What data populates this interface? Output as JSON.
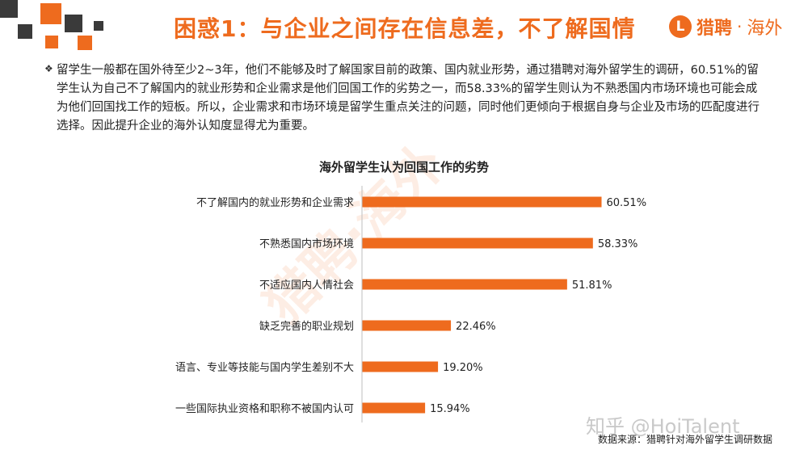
{
  "header": {
    "title": "困惑1：与企业之间存在信息差，不了解国情",
    "brand_mark": "L",
    "brand_name": "猎聘",
    "brand_sep": "·",
    "brand_sub": "海外"
  },
  "intro": {
    "bullet": "❖",
    "text": "留学生一般都在国外待至少2~3年，他们不能够及时了解国家目前的政策、国内就业形势，通过猎聘对海外留学生的调研，60.51%的留学生认为自己不了解国内的就业形势和企业需求是他们回国工作的劣势之一，而58.33%的留学生则认为不熟悉国内市场环境也可能会成为他们回国找工作的短板。所以，企业需求和市场环境是留学生重点关注的问题，同时他们更倾向于根据自身与企业及市场的匹配度进行选择。因此提升企业的海外认知度显得尤为重要。"
  },
  "watermark": "猎聘·海外",
  "chart_data": {
    "type": "bar",
    "orientation": "horizontal",
    "title": "海外留学生认为回国工作的劣势",
    "categories": [
      "不了解国内的就业形势和企业需求",
      "不熟悉国内市场环境",
      "不适应国内人情社会",
      "缺乏完善的职业规划",
      "语言、专业等技能与国内学生差别不大",
      "一些国际执业资格和职称不被国内认可"
    ],
    "values": [
      60.51,
      58.33,
      51.81,
      22.46,
      19.2,
      15.94
    ],
    "value_labels": [
      "60.51%",
      "58.33%",
      "51.81%",
      "22.46%",
      "19.20%",
      "15.94%"
    ],
    "xlim": [
      0,
      100
    ],
    "grid": false,
    "legend": "none",
    "bar_color": "#ee6b1e"
  },
  "footer": {
    "credit": "知乎 @HoiTalent",
    "source": "数据来源：猎聘针对海外留学生调研数据"
  },
  "colors": {
    "accent": "#ee6b1e",
    "dark_square": "#3a3a3a"
  }
}
